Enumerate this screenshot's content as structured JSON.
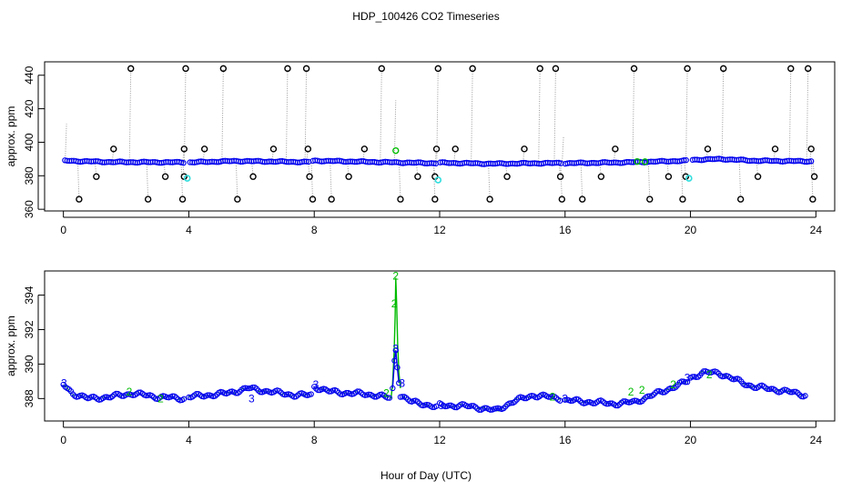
{
  "chart_data": {
    "title": "HDP_100426  CO2 Timeseries",
    "xlabel": "Hour of Day (UTC)",
    "colors": {
      "black": "#000000",
      "blue": "#0000ee",
      "green": "#00bb00",
      "cyan": "#33dddd",
      "gray_line": "#999999"
    },
    "panels": [
      {
        "type": "scatter",
        "ylabel": "approx. ppm",
        "xlim": [
          -0.6,
          24.6
        ],
        "ylim": [
          359,
          448
        ],
        "x_ticks": [
          0,
          4,
          8,
          12,
          16,
          20,
          24
        ],
        "y_ticks": [
          360,
          380,
          400,
          420,
          440
        ],
        "baseline": [
          [
            0,
            389
          ],
          [
            1.5,
            388.2
          ],
          [
            4,
            388
          ],
          [
            5.5,
            388.8
          ],
          [
            7.8,
            388.2
          ],
          [
            8,
            389
          ],
          [
            10.5,
            388
          ],
          [
            11.9,
            387.5
          ],
          [
            12,
            387.8
          ],
          [
            13.6,
            387.2
          ],
          [
            15.8,
            387.6
          ],
          [
            16,
            387.5
          ],
          [
            18,
            388
          ],
          [
            19.9,
            389
          ],
          [
            20,
            389.5
          ],
          [
            21,
            390
          ],
          [
            22,
            389
          ],
          [
            24,
            388.6
          ]
        ],
        "baseline_gaps": [
          3.95,
          7.9,
          11.95,
          15.95,
          19.95
        ],
        "spikes_high": [
          2.15,
          3.9,
          5.1,
          7.15,
          7.75,
          10.15,
          11.95,
          13.05,
          15.2,
          15.7,
          18.2,
          19.9,
          21.05,
          23.2,
          23.75
        ],
        "spikes_low": [
          0.5,
          2.7,
          3.8,
          5.55,
          7.95,
          8.55,
          10.75,
          11.85,
          13.6,
          15.9,
          16.55,
          18.7,
          19.75,
          21.6,
          23.9
        ],
        "mid_high": [
          1.6,
          3.85,
          4.5,
          6.7,
          7.8,
          9.6,
          11.9,
          12.5,
          14.7,
          17.6,
          20.55,
          22.7,
          23.85
        ],
        "mid_low": [
          1.05,
          3.25,
          3.85,
          6.05,
          7.85,
          9.1,
          11.3,
          11.85,
          14.15,
          15.85,
          17.15,
          19.3,
          19.85,
          22.15,
          23.95
        ],
        "cyan_points": [
          [
            3.95,
            378.5
          ],
          [
            11.95,
            377.5
          ],
          [
            19.95,
            378.5
          ]
        ],
        "green_points": [
          [
            10.6,
            395
          ],
          [
            18.3,
            388.5
          ],
          [
            18.55,
            388.4
          ]
        ],
        "gray_trails": [
          [
            0.1,
            411
          ],
          [
            10.6,
            425
          ],
          [
            15.95,
            403
          ]
        ]
      },
      {
        "type": "scatter",
        "ylabel": "approx. ppm",
        "xlim": [
          -0.6,
          24.6
        ],
        "ylim": [
          386.7,
          395.4
        ],
        "x_ticks": [
          0,
          4,
          8,
          12,
          16,
          20,
          24
        ],
        "y_ticks": [
          388,
          390,
          392,
          394
        ],
        "series": [
          [
            [
              0,
              388.8
            ],
            [
              0.3,
              388.3
            ],
            [
              0.8,
              388.0
            ],
            [
              1.5,
              388.1
            ],
            [
              2.2,
              388.3
            ],
            [
              3.0,
              388.1
            ],
            [
              3.9,
              388.0
            ]
          ],
          [
            [
              4.0,
              388.1
            ],
            [
              4.6,
              388.2
            ],
            [
              5.2,
              388.3
            ],
            [
              5.9,
              388.6
            ],
            [
              6.6,
              388.4
            ],
            [
              7.4,
              388.2
            ],
            [
              7.9,
              388.2
            ]
          ],
          [
            [
              8.0,
              388.7
            ],
            [
              8.5,
              388.4
            ],
            [
              9.3,
              388.3
            ],
            [
              10.0,
              388.2
            ],
            [
              10.45,
              388.0
            ]
          ],
          [
            [
              10.75,
              388.2
            ],
            [
              11.1,
              387.8
            ],
            [
              11.5,
              387.7
            ],
            [
              11.9,
              387.5
            ]
          ],
          [
            [
              12.0,
              387.6
            ],
            [
              12.6,
              387.6
            ],
            [
              13.2,
              387.5
            ],
            [
              13.8,
              387.3
            ],
            [
              14.3,
              387.8
            ],
            [
              15.0,
              388.2
            ],
            [
              15.9,
              388.0
            ]
          ],
          [
            [
              16.0,
              387.9
            ],
            [
              16.8,
              387.8
            ],
            [
              17.6,
              387.7
            ],
            [
              18.2,
              387.8
            ],
            [
              18.8,
              388.2
            ],
            [
              19.5,
              388.7
            ],
            [
              19.9,
              389.0
            ]
          ],
          [
            [
              20.0,
              389.2
            ],
            [
              20.4,
              389.5
            ],
            [
              20.9,
              389.5
            ],
            [
              21.4,
              389.1
            ],
            [
              22.0,
              388.7
            ],
            [
              22.8,
              388.5
            ],
            [
              23.7,
              388.2
            ]
          ]
        ],
        "peak": [
          [
            10.45,
            388.0
          ],
          [
            10.5,
            388.9
          ],
          [
            10.55,
            390.8
          ],
          [
            10.58,
            392.8
          ],
          [
            10.6,
            395.0
          ],
          [
            10.63,
            393.4
          ],
          [
            10.66,
            391.2
          ],
          [
            10.7,
            389.5
          ],
          [
            10.75,
            388.6
          ]
        ],
        "peak_blue": [
          [
            10.5,
            388.6
          ],
          [
            10.56,
            390.2
          ],
          [
            10.6,
            390.8
          ],
          [
            10.65,
            389.8
          ],
          [
            10.7,
            388.9
          ]
        ],
        "labels": [
          {
            "x": 0.02,
            "y": 388.9,
            "text": "3",
            "color": "#0000ee"
          },
          {
            "x": 8.05,
            "y": 388.8,
            "text": "3",
            "color": "#0000ee"
          },
          {
            "x": 10.6,
            "y": 390.9,
            "text": "3",
            "color": "#0000ee"
          },
          {
            "x": 10.8,
            "y": 388.9,
            "text": "3",
            "color": "#0000ee"
          },
          {
            "x": 12.05,
            "y": 387.6,
            "text": "3",
            "color": "#0000ee"
          },
          {
            "x": 16.0,
            "y": 388.0,
            "text": "3",
            "color": "#0000ee"
          },
          {
            "x": 6.0,
            "y": 388.0,
            "text": "3",
            "color": "#0000ee"
          },
          {
            "x": 10.6,
            "y": 395.1,
            "text": "2",
            "color": "#00bb00"
          },
          {
            "x": 10.55,
            "y": 393.5,
            "text": "2",
            "color": "#00bb00"
          },
          {
            "x": 10.3,
            "y": 388.3,
            "text": "2",
            "color": "#00bb00"
          },
          {
            "x": 2.1,
            "y": 388.4,
            "text": "2",
            "color": "#00bb00"
          },
          {
            "x": 3.1,
            "y": 388.0,
            "text": "2",
            "color": "#00bb00"
          },
          {
            "x": 15.6,
            "y": 388.1,
            "text": "2",
            "color": "#00bb00"
          },
          {
            "x": 18.1,
            "y": 388.4,
            "text": "2",
            "color": "#00bb00"
          },
          {
            "x": 18.45,
            "y": 388.5,
            "text": "2",
            "color": "#00bb00"
          },
          {
            "x": 19.45,
            "y": 388.8,
            "text": "2",
            "color": "#00bb00"
          },
          {
            "x": 20.6,
            "y": 389.4,
            "text": "2",
            "color": "#00bb00"
          },
          {
            "x": 19.9,
            "y": 389.2,
            "text": "3",
            "color": "#0000ee"
          }
        ]
      }
    ]
  }
}
